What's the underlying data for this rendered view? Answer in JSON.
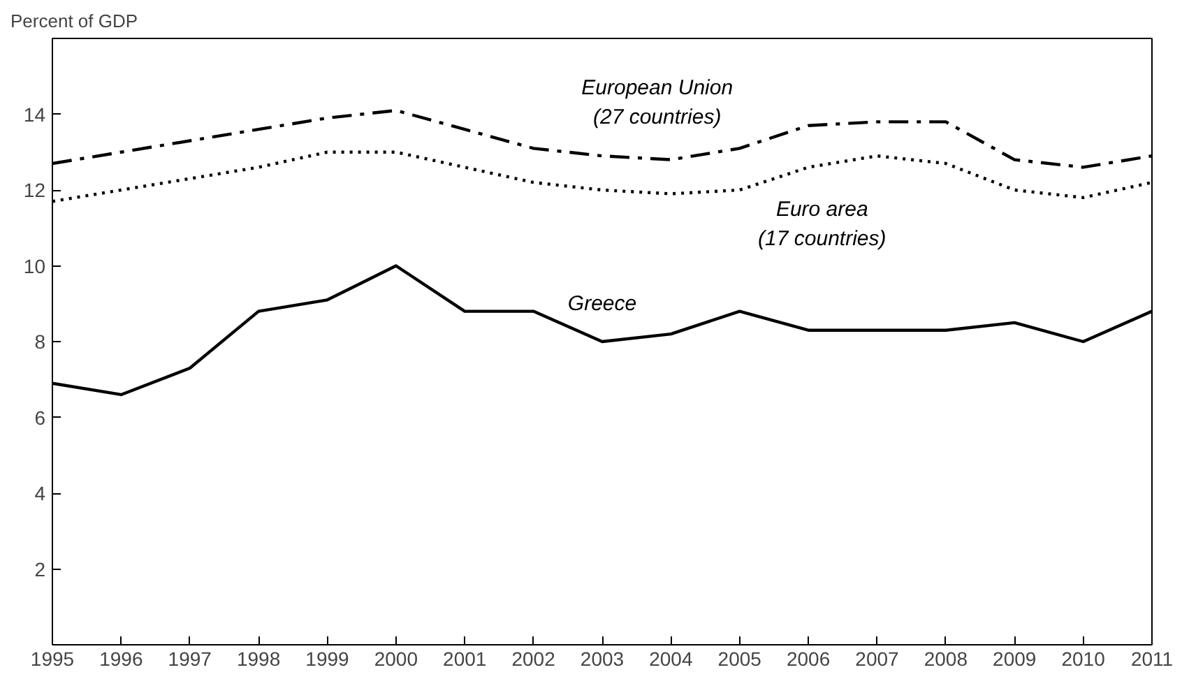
{
  "chart_data": {
    "type": "line",
    "ylabel": "Percent of GDP",
    "x": [
      1995,
      1996,
      1997,
      1998,
      1999,
      2000,
      2001,
      2002,
      2003,
      2004,
      2005,
      2006,
      2007,
      2008,
      2009,
      2010,
      2011
    ],
    "xlim": [
      1995,
      2011
    ],
    "xticks": [
      1995,
      1996,
      1997,
      1998,
      1999,
      2000,
      2001,
      2002,
      2003,
      2004,
      2005,
      2006,
      2007,
      2008,
      2009,
      2010,
      2011
    ],
    "ylim": [
      0,
      16
    ],
    "yticks": [
      2,
      4,
      6,
      8,
      10,
      12,
      14
    ],
    "series": [
      {
        "name": "European Union\n(27 countries)",
        "color": "#000000",
        "line_style": "dashdot",
        "values": [
          12.7,
          13.0,
          13.3,
          13.6,
          13.9,
          14.1,
          13.6,
          13.1,
          12.9,
          12.8,
          13.1,
          13.7,
          13.8,
          13.8,
          12.8,
          12.6,
          12.9
        ]
      },
      {
        "name": "Euro area\n(17 countries)",
        "color": "#000000",
        "line_style": "dotted",
        "values": [
          11.7,
          12.0,
          12.3,
          12.6,
          13.0,
          13.0,
          12.6,
          12.2,
          12.0,
          11.9,
          12.0,
          12.6,
          12.9,
          12.7,
          12.0,
          11.8,
          12.2
        ]
      },
      {
        "name": "Greece",
        "color": "#000000",
        "line_style": "solid",
        "values": [
          6.9,
          6.6,
          7.3,
          8.8,
          9.1,
          10.0,
          8.8,
          8.8,
          8.0,
          8.2,
          8.8,
          8.3,
          8.3,
          8.3,
          8.5,
          8.0,
          8.8
        ]
      }
    ]
  }
}
